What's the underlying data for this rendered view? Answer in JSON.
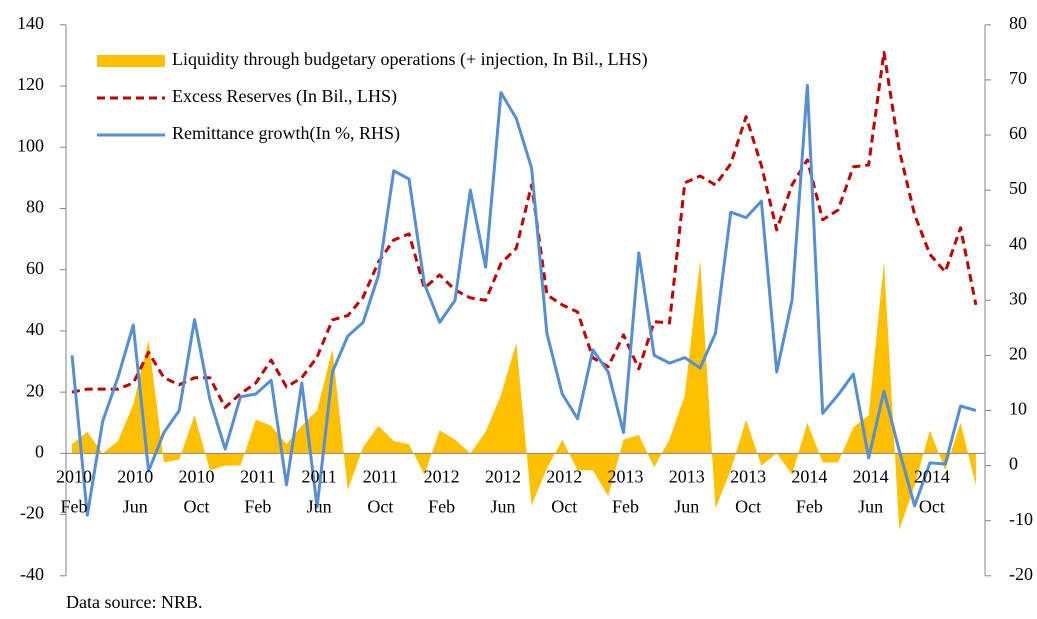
{
  "chart_data": {
    "type": "combo",
    "source": "Data source: NRB.",
    "categories": [
      [
        "2010",
        "Feb"
      ],
      null,
      null,
      null,
      [
        "2010",
        "Jun"
      ],
      null,
      null,
      null,
      [
        "2010",
        "Oct"
      ],
      null,
      null,
      null,
      [
        "2011",
        "Feb"
      ],
      null,
      null,
      null,
      [
        "2011",
        "Jun"
      ],
      null,
      null,
      null,
      [
        "2011",
        "Oct"
      ],
      null,
      null,
      null,
      [
        "2012",
        "Feb"
      ],
      null,
      null,
      null,
      [
        "2012",
        "Jun"
      ],
      null,
      null,
      null,
      [
        "2012",
        "Oct"
      ],
      null,
      null,
      null,
      [
        "2013",
        "Feb"
      ],
      null,
      null,
      null,
      [
        "2013",
        "Jun"
      ],
      null,
      null,
      null,
      [
        "2013",
        "Oct"
      ],
      null,
      null,
      null,
      [
        "2014",
        "Feb"
      ],
      null,
      null,
      null,
      [
        "2014",
        "Jun"
      ],
      null,
      null,
      null,
      [
        "2014",
        "Oct"
      ],
      null,
      null,
      null
    ],
    "series": [
      {
        "name": "Liquidity through budgetary operations (+ injection, In Bil., LHS)",
        "type": "area",
        "color": "#ffc000",
        "values": [
          3,
          7,
          0,
          4,
          16,
          37,
          -3,
          -2,
          12.5,
          -5.5,
          -4,
          -4,
          11,
          9,
          3,
          9,
          14,
          34,
          -12,
          2,
          9,
          4,
          3,
          -7,
          7.5,
          4.5,
          0,
          7,
          19,
          36,
          -17,
          -5,
          4.5,
          -5.5,
          -5.5,
          -14,
          4.5,
          6,
          -4.5,
          4.5,
          19,
          63,
          -18,
          -5.5,
          11,
          -4,
          0,
          -7,
          10,
          -3,
          -3,
          8.5,
          12.5,
          62.5,
          -25,
          -10.5,
          7.5,
          -5.5,
          10,
          -10.5
        ]
      },
      {
        "name": "Excess Reserves (In Bil., LHS)",
        "type": "line",
        "dashed": true,
        "color": "#c00000",
        "values": [
          20,
          21,
          21,
          21,
          23,
          33,
          24.7,
          22.4,
          24.7,
          24.7,
          15,
          19.5,
          23,
          30.5,
          21.7,
          24.7,
          31.5,
          43.6,
          45,
          51,
          62.5,
          69.7,
          71.7,
          54,
          58.3,
          53.4,
          50.8,
          50,
          62,
          67,
          87.7,
          51.8,
          48.5,
          46.2,
          31.2,
          28.3,
          38.7,
          27.6,
          43,
          42.6,
          88.4,
          90.6,
          87.7,
          94.6,
          110,
          94,
          73,
          87.7,
          95.9,
          76.3,
          79.5,
          93.6,
          94.2,
          131,
          99,
          78,
          65,
          59.3,
          73.7,
          48.5
        ]
      },
      {
        "name": "Remittance growth(In %, RHS)",
        "type": "line",
        "dashed": false,
        "color": "#558ed5",
        "axis": "y2",
        "values": [
          20,
          -9,
          8,
          16,
          25.5,
          -1,
          6,
          10,
          26.5,
          12,
          3,
          12.5,
          13,
          15.5,
          -3.5,
          15,
          -7.5,
          17,
          23.5,
          26,
          34.5,
          53.5,
          52,
          33,
          26,
          30,
          50,
          36,
          67.7,
          63,
          54,
          24,
          13,
          8.5,
          21,
          17,
          6,
          38.6,
          20,
          18.6,
          19.6,
          17.7,
          24,
          46,
          45,
          48,
          17,
          30,
          69,
          9.5,
          12.8,
          16.6,
          1.4,
          13.5,
          2.7,
          -7.3,
          0.5,
          0.3,
          10.8,
          10
        ]
      }
    ],
    "ylim": [
      -40,
      140
    ],
    "yticks": [
      -40,
      -20,
      0,
      20,
      40,
      60,
      80,
      100,
      120,
      140
    ],
    "y2lim": [
      -20,
      80
    ],
    "y2ticks": [
      -20,
      -10,
      0,
      10,
      20,
      30,
      40,
      50,
      60,
      70,
      80
    ]
  }
}
